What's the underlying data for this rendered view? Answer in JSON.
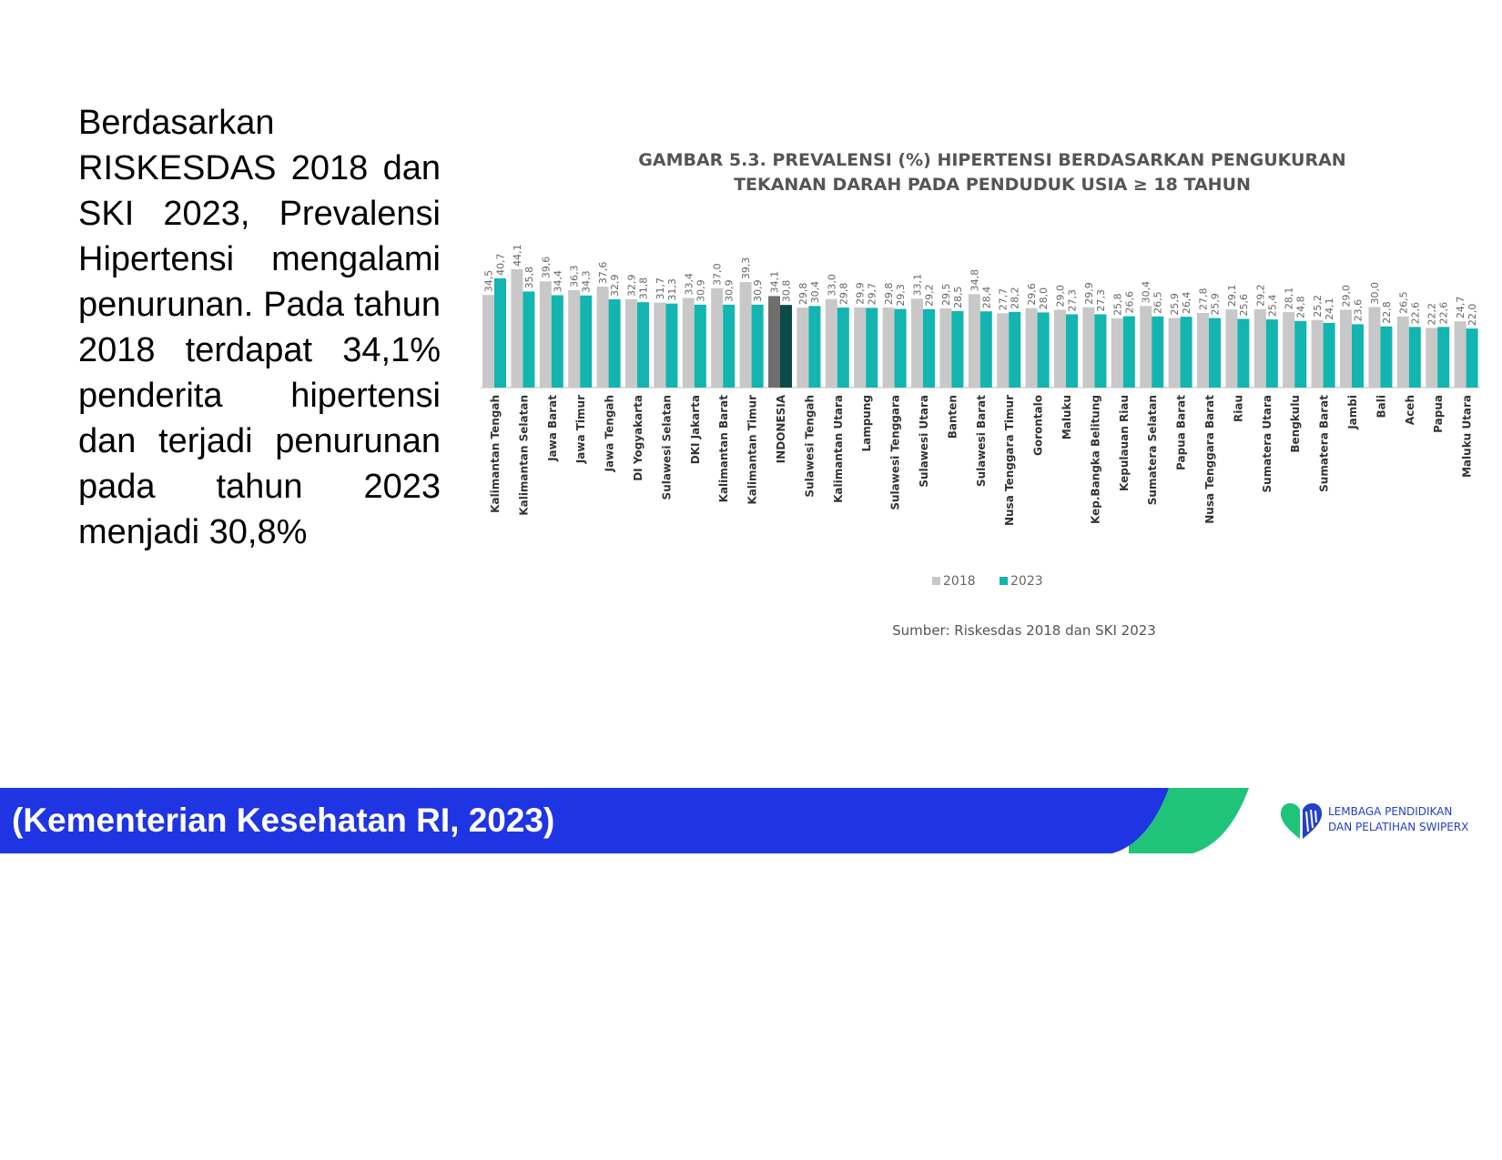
{
  "slide": {
    "paragraph": "Berdasarkan RISKESDAS 2018 dan SKI 2023, Prevalensi Hipertensi mengalami penurunan. Pada tahun 2018 terdapat 34,1% penderita hipertensi dan terjadi penurunan pada tahun 2023 menjadi 30,8%"
  },
  "footer": {
    "citation": "(Kementerian Kesehatan RI, 2023)",
    "band_color": "#1f35e3",
    "accent_color": "#1fc47a"
  },
  "logo": {
    "line1": "LEMBAGA PENDIDIKAN",
    "line2": "DAN PELATIHAN SWIPERX",
    "colors": [
      "#1fc47a",
      "#2440c8"
    ]
  },
  "chart_data": {
    "type": "bar",
    "title_line1": "GAMBAR 5.3.  PREVALENSI (%) HIPERTENSI BERDASARKAN PENGUKURAN",
    "title_line2": "TEKANAN DARAH PADA PENDUDUK USIA ≥ 18 TAHUN",
    "source": "Sumber: Riskesdas 2018 dan SKI 2023",
    "legend_position": "bottom-center",
    "grid": false,
    "highlight_category": "INDONESIA",
    "highlight_colors": {
      "2018": "#6e6e6e",
      "2023": "#0c4a4a"
    },
    "categories": [
      "Kalimantan Tengah",
      "Kalimantan Selatan",
      "Jawa Barat",
      "Jawa Timur",
      "Jawa Tengah",
      "DI Yogyakarta",
      "Sulawesi Selatan",
      "DKI Jakarta",
      "Kalimantan Barat",
      "Kalimantan Timur",
      "INDONESIA",
      "Sulawesi Tengah",
      "Kalimantan Utara",
      "Lampung",
      "Sulawesi Tenggara",
      "Sulawesi Utara",
      "Banten",
      "Sulawesi Barat",
      "Nusa Tenggara Timur",
      "Gorontalo",
      "Maluku",
      "Kep.Bangka Belitung",
      "Kepulauan Riau",
      "Sumatera Selatan",
      "Papua Barat",
      "Nusa Tenggara Barat",
      "Riau",
      "Sumatera Utara",
      "Bengkulu",
      "Sumatera Barat",
      "Jambi",
      "Bali",
      "Aceh",
      "Papua",
      "Maluku Utara"
    ],
    "series": [
      {
        "name": "2018",
        "color": "#c8c8c8",
        "values": [
          34.5,
          44.1,
          39.6,
          36.3,
          37.6,
          32.9,
          31.7,
          33.4,
          37.0,
          39.3,
          34.1,
          29.8,
          33.0,
          29.9,
          29.8,
          33.1,
          29.5,
          34.8,
          27.7,
          29.6,
          29.0,
          29.9,
          25.8,
          30.4,
          25.9,
          27.8,
          29.1,
          29.2,
          28.1,
          25.2,
          29.0,
          30.0,
          26.5,
          22.2,
          24.7
        ],
        "labels": [
          "34,5",
          "44,1",
          "39,6",
          "36,3",
          "37,6",
          "32,9",
          "31,7",
          "33,4",
          "37,0",
          "39,3",
          "34,1",
          "29,8",
          "33,0",
          "29,9",
          "29,8",
          "33,1",
          "29,5",
          "34,8",
          "27,7",
          "29,6",
          "29,0",
          "29,9",
          "25,8",
          "30,4",
          "25,9",
          "27,8",
          "29,1",
          "29,2",
          "28,1",
          "25,2",
          "29,0",
          "30,0",
          "26,5",
          "22,2",
          "24,7"
        ]
      },
      {
        "name": "2023",
        "color": "#12b5b0",
        "values": [
          40.7,
          35.8,
          34.4,
          34.3,
          32.9,
          31.8,
          31.3,
          30.9,
          30.9,
          30.9,
          30.8,
          30.4,
          29.8,
          29.7,
          29.3,
          29.2,
          28.5,
          28.4,
          28.2,
          28.0,
          27.3,
          27.3,
          26.6,
          26.5,
          26.4,
          25.9,
          25.6,
          25.4,
          24.8,
          24.1,
          23.6,
          22.8,
          22.6,
          22.6,
          22.0
        ],
        "labels": [
          "40,7",
          "35,8",
          "34,4",
          "34,3",
          "32,9",
          "31,8",
          "31,3",
          "30,9",
          "30,9",
          "30,9",
          "30,8",
          "30,4",
          "29,8",
          "29,7",
          "29,3",
          "29,2",
          "28,5",
          "28,4",
          "28,2",
          "28,0",
          "27,3",
          "27,3",
          "26,6",
          "26,5",
          "26,4",
          "25,9",
          "25,6",
          "25,4",
          "24,8",
          "24,1",
          "23,6",
          "22,8",
          "22,6",
          "22,6",
          "22,0"
        ]
      }
    ]
  }
}
